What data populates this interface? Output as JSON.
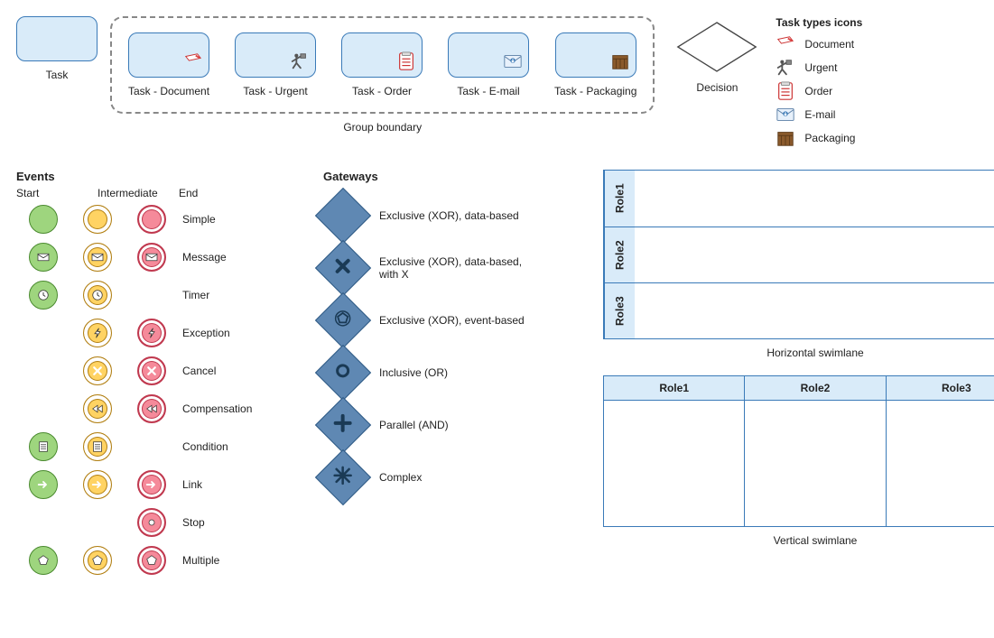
{
  "tasks": {
    "base_label": "Task",
    "group_label": "Group boundary",
    "items": [
      {
        "label": "Task - Document",
        "icon": "document"
      },
      {
        "label": "Task - Urgent",
        "icon": "urgent"
      },
      {
        "label": "Task - Order",
        "icon": "order"
      },
      {
        "label": "Task - E-mail",
        "icon": "email"
      },
      {
        "label": "Task - Packaging",
        "icon": "packaging"
      }
    ],
    "shape": {
      "fill": "#d9ebf9",
      "stroke": "#3a7ab8",
      "radius": 10
    }
  },
  "decision": {
    "label": "Decision",
    "stroke": "#444",
    "fill": "#ffffff"
  },
  "legend": {
    "title": "Task types icons",
    "items": [
      {
        "icon": "document",
        "label": "Document"
      },
      {
        "icon": "urgent",
        "label": "Urgent"
      },
      {
        "icon": "order",
        "label": "Order"
      },
      {
        "icon": "email",
        "label": "E-mail"
      },
      {
        "icon": "packaging",
        "label": "Packaging"
      }
    ]
  },
  "events": {
    "title": "Events",
    "columns": [
      "Start",
      "Intermediate",
      "End"
    ],
    "colors": {
      "start": {
        "fill": "#9ed57e",
        "stroke": "#4a8a2f"
      },
      "intermediate": {
        "fill": "#ffd363",
        "stroke": "#b07e12"
      },
      "end": {
        "fill": "#f58a9a",
        "stroke": "#c0394f"
      }
    },
    "rows": [
      {
        "label": "Simple",
        "start": "plain",
        "inter": "plain",
        "end": "plain"
      },
      {
        "label": "Message",
        "start": "envelope",
        "inter": "envelope",
        "end": "envelope"
      },
      {
        "label": "Timer",
        "start": "clock",
        "inter": "clock",
        "end": null
      },
      {
        "label": "Exception",
        "start": null,
        "inter": "bolt",
        "end": "bolt"
      },
      {
        "label": "Cancel",
        "start": null,
        "inter": "x",
        "end": "x"
      },
      {
        "label": "Compensation",
        "start": null,
        "inter": "rewind",
        "end": "rewind"
      },
      {
        "label": "Condition",
        "start": "lines",
        "inter": "lines",
        "end": null
      },
      {
        "label": "Link",
        "start": "arrow",
        "inter": "arrow",
        "end": "arrow"
      },
      {
        "label": "Stop",
        "start": null,
        "inter": null,
        "end": "dot"
      },
      {
        "label": "Multiple",
        "start": "pentagon",
        "inter": "pentagon",
        "end": "pentagon"
      }
    ]
  },
  "gateways": {
    "title": "Gateways",
    "fill": "#5f88b3",
    "stroke": "#2e5a84",
    "items": [
      {
        "label": "Exclusive (XOR), data-based",
        "mark": ""
      },
      {
        "label": "Exclusive (XOR), data-based, with X",
        "mark": "x"
      },
      {
        "label": "Exclusive (XOR), event-based",
        "mark": "pent"
      },
      {
        "label": "Inclusive (OR)",
        "mark": "o"
      },
      {
        "label": "Parallel (AND)",
        "mark": "plus"
      },
      {
        "label": "Complex",
        "mark": "star"
      }
    ]
  },
  "swimlanes": {
    "horizontal": {
      "caption": "Horizontal swimlane",
      "roles": [
        "Role1",
        "Role2",
        "Role3"
      ]
    },
    "vertical": {
      "caption": "Vertical swimlane",
      "roles": [
        "Role1",
        "Role2",
        "Role3"
      ]
    },
    "colors": {
      "header_fill": "#d9ebf9",
      "stroke": "#3a7ab8"
    }
  }
}
